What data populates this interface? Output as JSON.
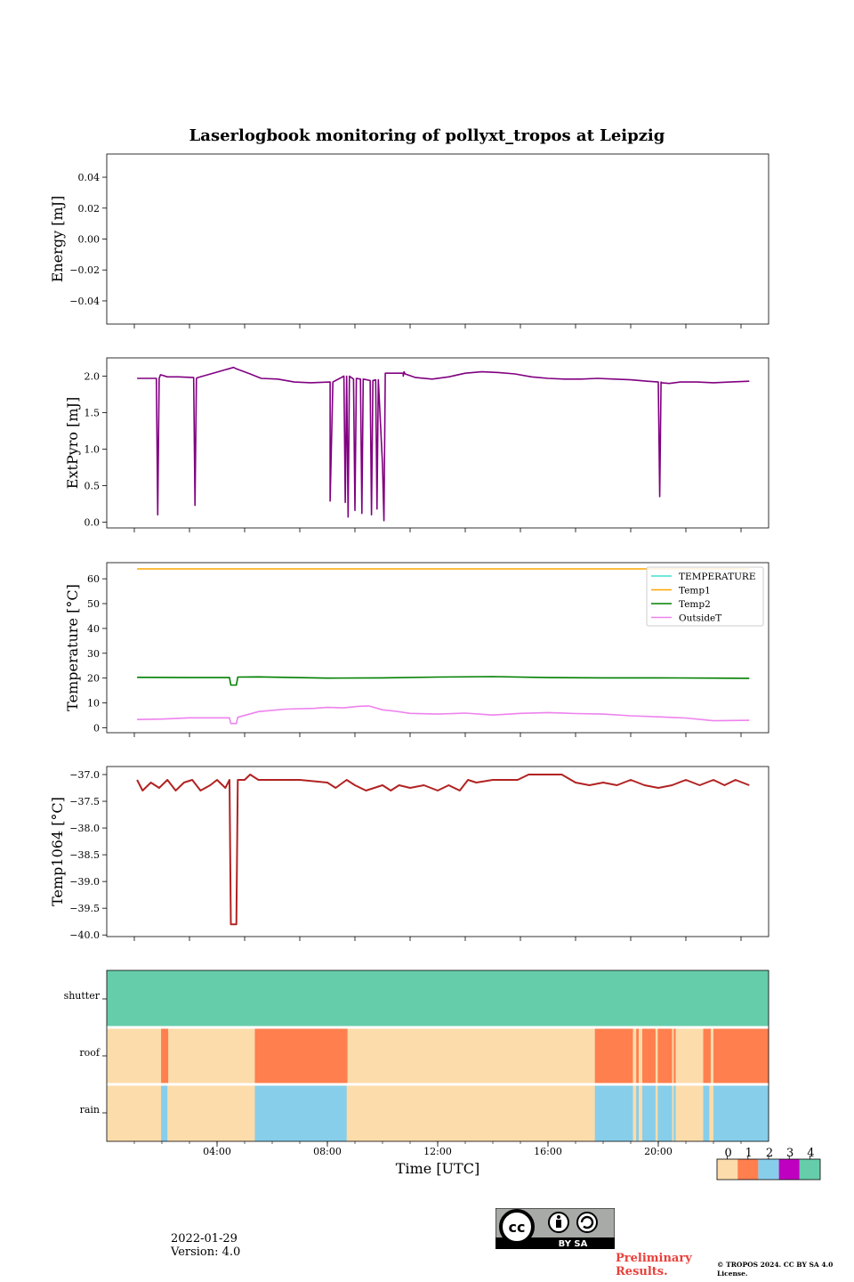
{
  "title": "Laserlogbook monitoring of pollyxt_tropos at Leipzig",
  "footer": {
    "date": "2022-01-29",
    "version": "Version: 4.0",
    "preliminary": "Preliminary Results.",
    "copyright": "© TROPOS 2024. CC BY SA 4.0 License.",
    "license_badge": "BY SA"
  },
  "colors": {
    "energy": "#800080",
    "extpyro": "#800080",
    "temperature": "#40e0d0",
    "temp1": "#ffa500",
    "temp2": "#008000",
    "outsidet": "#ee82ee",
    "temp1064": "#b22222",
    "flag0": "#fcdcab",
    "flag1": "#ff7f4f",
    "flag2": "#87ceeb",
    "flag3": "#c000c0",
    "flag4": "#66cdaa"
  },
  "chart_data": [
    {
      "id": "energy",
      "type": "line",
      "ylabel": "Energy [mJ]",
      "xlim": [
        0,
        24
      ],
      "ylim": [
        -0.055,
        0.055
      ],
      "yticks": [
        0.04,
        0.02,
        0.0,
        -0.02,
        -0.04
      ],
      "yticklabels": [
        "0.04",
        "0.02",
        "0.00",
        "−0.02",
        "−0.04"
      ],
      "series": []
    },
    {
      "id": "extpyro",
      "type": "line",
      "ylabel": "ExtPyro [mJ]",
      "xlim": [
        0,
        24
      ],
      "ylim": [
        -0.08,
        2.25
      ],
      "yticks": [
        0.0,
        0.5,
        1.0,
        1.5,
        2.0
      ],
      "yticklabels": [
        "0.0",
        "0.5",
        "1.0",
        "1.5",
        "2.0"
      ],
      "series": [
        {
          "name": "ExtPyro",
          "x": [
            1.1,
            1.8,
            1.85,
            1.9,
            1.95,
            2.2,
            2.6,
            3.15,
            3.2,
            3.25,
            3.3,
            4.6,
            4.7,
            5.2,
            5.6,
            6.2,
            6.8,
            7.4,
            8.1,
            8.1,
            8.2,
            8.2,
            8.6,
            8.65,
            8.7,
            8.75,
            8.8,
            8.95,
            9.0,
            9.05,
            9.2,
            9.25,
            9.3,
            9.55,
            9.6,
            9.65,
            9.75,
            9.8,
            9.85,
            10.0,
            10.05,
            10.1,
            10.75,
            10.75,
            10.78,
            10.82,
            11.2,
            11.8,
            12.4,
            13.0,
            13.6,
            14.2,
            14.8,
            15.4,
            16.0,
            16.6,
            17.2,
            17.8,
            18.4,
            19.0,
            19.6,
            20.0,
            20.05,
            20.1,
            20.12,
            20.4,
            20.8,
            21.4,
            22.0,
            22.6,
            23.3
          ],
          "y": [
            1.97,
            1.97,
            0.1,
            1.97,
            2.02,
            1.99,
            1.99,
            1.98,
            0.23,
            1.97,
            1.98,
            2.12,
            2.1,
            2.03,
            1.97,
            1.96,
            1.92,
            1.91,
            1.92,
            0.29,
            1.92,
            1.92,
            2.0,
            0.27,
            2.0,
            0.07,
            2.0,
            1.96,
            0.16,
            1.97,
            1.96,
            0.12,
            1.96,
            1.94,
            0.1,
            1.94,
            1.95,
            0.18,
            1.95,
            0.78,
            0.02,
            2.04,
            2.04,
            2.0,
            2.06,
            2.03,
            1.98,
            1.96,
            1.99,
            2.04,
            2.06,
            2.05,
            2.03,
            1.99,
            1.97,
            1.96,
            1.96,
            1.97,
            1.96,
            1.95,
            1.93,
            1.92,
            0.35,
            1.92,
            1.91,
            1.9,
            1.92,
            1.92,
            1.91,
            1.92,
            1.93
          ]
        }
      ]
    },
    {
      "id": "temperature",
      "type": "line",
      "ylabel": "Temperature [°C]",
      "xlim": [
        0,
        24
      ],
      "ylim": [
        -2,
        66.5
      ],
      "yticks": [
        0,
        10,
        20,
        30,
        40,
        50,
        60
      ],
      "yticklabels": [
        "0",
        "10",
        "20",
        "30",
        "40",
        "50",
        "60"
      ],
      "legend": [
        "TEMPERATURE",
        "Temp1",
        "Temp2",
        "OutsideT"
      ],
      "series": [
        {
          "name": "TEMPERATURE",
          "x": [],
          "y": []
        },
        {
          "name": "Temp1",
          "x": [
            1.1,
            23.3
          ],
          "y": [
            64,
            64
          ]
        },
        {
          "name": "Temp2",
          "x": [
            1.1,
            3.0,
            4.45,
            4.5,
            4.7,
            4.75,
            5.5,
            8.0,
            10.0,
            12.0,
            14.0,
            16.0,
            18.0,
            20.0,
            22.0,
            23.3
          ],
          "y": [
            20.3,
            20.2,
            20.2,
            17.2,
            17.2,
            20.4,
            20.5,
            20.0,
            20.1,
            20.4,
            20.6,
            20.2,
            20.1,
            20.1,
            20.0,
            19.9
          ]
        },
        {
          "name": "OutsideT",
          "x": [
            1.1,
            2.0,
            3.0,
            4.0,
            4.45,
            4.5,
            4.7,
            4.75,
            5.5,
            6.5,
            7.5,
            8.0,
            8.6,
            9.1,
            9.5,
            10.0,
            10.5,
            11.0,
            12.0,
            13.0,
            14.0,
            15.0,
            16.0,
            17.0,
            18.0,
            19.0,
            20.0,
            21.0,
            22.0,
            23.3
          ],
          "y": [
            3.3,
            3.5,
            4.0,
            4.0,
            4.0,
            1.7,
            1.7,
            4.2,
            6.5,
            7.5,
            7.8,
            8.2,
            8.0,
            8.6,
            8.8,
            7.2,
            6.6,
            5.8,
            5.5,
            5.9,
            5.1,
            5.8,
            6.1,
            5.7,
            5.5,
            4.8,
            4.4,
            3.9,
            2.8,
            3.0
          ]
        }
      ]
    },
    {
      "id": "temp1064",
      "type": "line",
      "ylabel": "Temp1064 [°C]",
      "xlim": [
        0,
        24
      ],
      "ylim": [
        -40.03,
        -36.85
      ],
      "yticks": [
        -37.0,
        -37.5,
        -38.0,
        -38.5,
        -39.0,
        -39.5,
        -40.0
      ],
      "yticklabels": [
        "−37.0",
        "−37.5",
        "−38.0",
        "−38.5",
        "−39.0",
        "−39.5",
        "−40.0"
      ],
      "series": [
        {
          "name": "Temp1064",
          "x": [
            1.1,
            1.3,
            1.6,
            1.9,
            2.2,
            2.5,
            2.8,
            3.1,
            3.4,
            3.75,
            4.0,
            4.3,
            4.45,
            4.5,
            4.7,
            4.75,
            5.0,
            5.2,
            5.5,
            6.0,
            7.0,
            8.0,
            8.3,
            8.7,
            9.0,
            9.4,
            10.0,
            10.3,
            10.6,
            11.0,
            11.5,
            12.0,
            12.4,
            12.8,
            13.1,
            13.4,
            14.0,
            14.5,
            14.9,
            15.3,
            15.6,
            16.0,
            16.5,
            17.0,
            17.5,
            18.0,
            18.5,
            19.0,
            19.5,
            20.0,
            20.5,
            21.0,
            21.5,
            22.0,
            22.4,
            22.8,
            23.3
          ],
          "y": [
            -37.1,
            -37.3,
            -37.15,
            -37.25,
            -37.1,
            -37.3,
            -37.15,
            -37.1,
            -37.3,
            -37.2,
            -37.1,
            -37.25,
            -37.1,
            -39.8,
            -39.8,
            -37.1,
            -37.1,
            -37.0,
            -37.1,
            -37.1,
            -37.1,
            -37.15,
            -37.25,
            -37.1,
            -37.2,
            -37.3,
            -37.2,
            -37.3,
            -37.2,
            -37.25,
            -37.2,
            -37.3,
            -37.2,
            -37.3,
            -37.1,
            -37.15,
            -37.1,
            -37.1,
            -37.1,
            -37.0,
            -37.0,
            -37.0,
            -37.0,
            -37.15,
            -37.2,
            -37.15,
            -37.2,
            -37.1,
            -37.2,
            -37.25,
            -37.2,
            -37.1,
            -37.2,
            -37.1,
            -37.2,
            -37.1,
            -37.2
          ]
        }
      ]
    },
    {
      "id": "flags",
      "type": "heatmap",
      "xlim": [
        0,
        24
      ],
      "xticks": [
        4,
        8,
        12,
        16,
        20
      ],
      "xticklabels": [
        "04:00",
        "08:00",
        "12:00",
        "16:00",
        "20:00"
      ],
      "xlabel": "Time [UTC]",
      "rows": [
        "shutter",
        "roof",
        "rain"
      ],
      "segments": {
        "shutter": [
          {
            "start": 0,
            "end": 24,
            "flag": 4
          }
        ],
        "roof": [
          {
            "start": 0,
            "end": 1.97,
            "flag": 0
          },
          {
            "start": 1.97,
            "end": 2.23,
            "flag": 1
          },
          {
            "start": 2.23,
            "end": 5.37,
            "flag": 0
          },
          {
            "start": 5.37,
            "end": 8.73,
            "flag": 1
          },
          {
            "start": 8.73,
            "end": 17.7,
            "flag": 0
          },
          {
            "start": 17.7,
            "end": 19.08,
            "flag": 1
          },
          {
            "start": 19.08,
            "end": 19.2,
            "flag": 0
          },
          {
            "start": 19.2,
            "end": 19.29,
            "flag": 1
          },
          {
            "start": 19.29,
            "end": 19.42,
            "flag": 0
          },
          {
            "start": 19.42,
            "end": 19.9,
            "flag": 1
          },
          {
            "start": 19.9,
            "end": 19.98,
            "flag": 0
          },
          {
            "start": 19.98,
            "end": 20.5,
            "flag": 1
          },
          {
            "start": 20.5,
            "end": 20.56,
            "flag": 0
          },
          {
            "start": 20.56,
            "end": 20.63,
            "flag": 1
          },
          {
            "start": 20.63,
            "end": 21.63,
            "flag": 0
          },
          {
            "start": 21.63,
            "end": 21.9,
            "flag": 1
          },
          {
            "start": 21.9,
            "end": 22.0,
            "flag": 0
          },
          {
            "start": 22.0,
            "end": 24,
            "flag": 1
          }
        ],
        "rain": [
          {
            "start": 0,
            "end": 1.97,
            "flag": 0
          },
          {
            "start": 1.97,
            "end": 2.2,
            "flag": 2
          },
          {
            "start": 2.2,
            "end": 5.37,
            "flag": 0
          },
          {
            "start": 5.37,
            "end": 8.7,
            "flag": 2
          },
          {
            "start": 8.7,
            "end": 17.7,
            "flag": 0
          },
          {
            "start": 17.7,
            "end": 19.08,
            "flag": 2
          },
          {
            "start": 19.08,
            "end": 19.2,
            "flag": 0
          },
          {
            "start": 19.2,
            "end": 19.29,
            "flag": 2
          },
          {
            "start": 19.29,
            "end": 19.42,
            "flag": 0
          },
          {
            "start": 19.42,
            "end": 19.9,
            "flag": 2
          },
          {
            "start": 19.9,
            "end": 19.98,
            "flag": 0
          },
          {
            "start": 19.98,
            "end": 20.5,
            "flag": 2
          },
          {
            "start": 20.5,
            "end": 20.56,
            "flag": 0
          },
          {
            "start": 20.56,
            "end": 20.63,
            "flag": 2
          },
          {
            "start": 20.63,
            "end": 21.63,
            "flag": 0
          },
          {
            "start": 21.63,
            "end": 21.85,
            "flag": 2
          },
          {
            "start": 21.85,
            "end": 22.0,
            "flag": 0
          },
          {
            "start": 22.0,
            "end": 24,
            "flag": 2
          }
        ]
      },
      "colorbar": {
        "ticks": [
          0,
          1,
          2,
          3,
          4
        ],
        "ticklabels": [
          "0",
          "1",
          "2",
          "3",
          "4"
        ]
      }
    }
  ]
}
